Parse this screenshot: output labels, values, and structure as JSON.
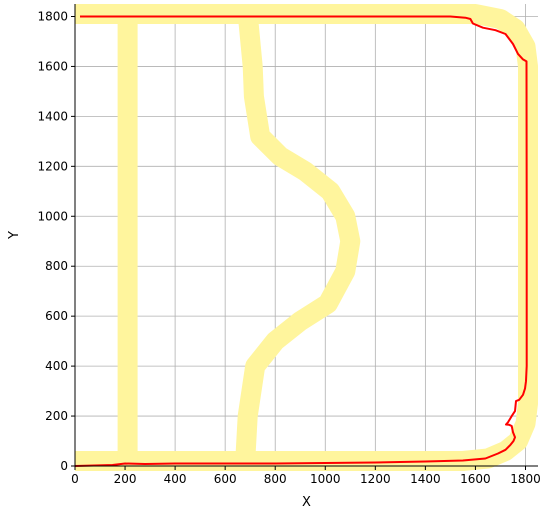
{
  "chart_data": {
    "type": "line",
    "title": "",
    "xlabel": "X",
    "ylabel": "Y",
    "xlim": [
      0,
      1850
    ],
    "ylim": [
      0,
      1850
    ],
    "xticks": [
      0,
      200,
      400,
      600,
      800,
      1000,
      1200,
      1400,
      1600,
      1800
    ],
    "yticks": [
      0,
      200,
      400,
      600,
      800,
      1000,
      1200,
      1400,
      1600,
      1800
    ],
    "grid": true,
    "series": [
      {
        "role": "track",
        "style": "thick band",
        "color": "#fff59d",
        "paths": [
          [
            [
              0,
              20
            ],
            [
              1550,
              20
            ],
            [
              1650,
              30
            ],
            [
              1720,
              60
            ],
            [
              1770,
              100
            ],
            [
              1800,
              170
            ],
            [
              1810,
              250
            ],
            [
              1810,
              1600
            ],
            [
              1800,
              1680
            ],
            [
              1760,
              1750
            ],
            [
              1700,
              1790
            ],
            [
              1600,
              1810
            ],
            [
              0,
              1810
            ]
          ],
          [
            [
              210,
              20
            ],
            [
              210,
              1810
            ]
          ],
          [
            [
              680,
              20
            ],
            [
              690,
              200
            ],
            [
              720,
              400
            ],
            [
              800,
              500
            ],
            [
              900,
              580
            ],
            [
              1010,
              650
            ],
            [
              1080,
              780
            ],
            [
              1100,
              900
            ],
            [
              1080,
              1000
            ],
            [
              1020,
              1100
            ],
            [
              920,
              1180
            ],
            [
              820,
              1240
            ],
            [
              740,
              1320
            ],
            [
              715,
              1480
            ],
            [
              710,
              1600
            ],
            [
              690,
              1810
            ]
          ]
        ]
      },
      {
        "role": "path",
        "style": "line",
        "color": "#ff0000",
        "points": [
          [
            0,
            0
          ],
          [
            150,
            4
          ],
          [
            200,
            10
          ],
          [
            280,
            8
          ],
          [
            400,
            10
          ],
          [
            600,
            10
          ],
          [
            800,
            10
          ],
          [
            1000,
            12
          ],
          [
            1200,
            14
          ],
          [
            1400,
            18
          ],
          [
            1550,
            22
          ],
          [
            1640,
            30
          ],
          [
            1690,
            50
          ],
          [
            1720,
            65
          ],
          [
            1740,
            85
          ],
          [
            1752,
            100
          ],
          [
            1758,
            115
          ],
          [
            1750,
            135
          ],
          [
            1745,
            160
          ],
          [
            1735,
            165
          ],
          [
            1722,
            166
          ],
          [
            1730,
            175
          ],
          [
            1745,
            200
          ],
          [
            1758,
            220
          ],
          [
            1762,
            260
          ],
          [
            1775,
            265
          ],
          [
            1790,
            285
          ],
          [
            1798,
            310
          ],
          [
            1802,
            340
          ],
          [
            1805,
            400
          ],
          [
            1805,
            1000
          ],
          [
            1804,
            1620
          ],
          [
            1790,
            1628
          ],
          [
            1770,
            1650
          ],
          [
            1750,
            1690
          ],
          [
            1720,
            1730
          ],
          [
            1680,
            1745
          ],
          [
            1630,
            1755
          ],
          [
            1590,
            1772
          ],
          [
            1580,
            1790
          ],
          [
            1560,
            1795
          ],
          [
            1500,
            1800
          ],
          [
            1200,
            1800
          ],
          [
            800,
            1800
          ],
          [
            400,
            1800
          ],
          [
            20,
            1800
          ]
        ]
      }
    ]
  }
}
